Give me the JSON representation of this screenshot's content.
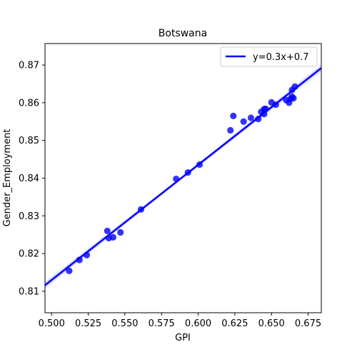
{
  "chart_data": {
    "type": "scatter",
    "title": "Botswana",
    "xlabel": "GPI",
    "ylabel": "Gender_Employment",
    "xlim": [
      0.4955,
      0.684
    ],
    "ylim": [
      0.8043,
      0.8757
    ],
    "xticks": [
      0.5,
      0.525,
      0.55,
      0.575,
      0.6,
      0.625,
      0.65,
      0.675
    ],
    "xtick_labels": [
      "0.500",
      "0.525",
      "0.550",
      "0.575",
      "0.600",
      "0.625",
      "0.650",
      "0.675"
    ],
    "yticks": [
      0.81,
      0.82,
      0.83,
      0.84,
      0.85,
      0.86,
      0.87
    ],
    "ytick_labels": [
      "0.81",
      "0.82",
      "0.83",
      "0.84",
      "0.85",
      "0.86",
      "0.87"
    ],
    "grid": false,
    "legend_position": "top-right",
    "series": [
      {
        "kind": "scatter",
        "color": "#0000ff",
        "points": [
          {
            "x": 0.512,
            "y": 0.8154
          },
          {
            "x": 0.519,
            "y": 0.8183
          },
          {
            "x": 0.524,
            "y": 0.8196
          },
          {
            "x": 0.538,
            "y": 0.826
          },
          {
            "x": 0.539,
            "y": 0.8241
          },
          {
            "x": 0.542,
            "y": 0.8243
          },
          {
            "x": 0.547,
            "y": 0.8256
          },
          {
            "x": 0.561,
            "y": 0.8317
          },
          {
            "x": 0.585,
            "y": 0.8398
          },
          {
            "x": 0.593,
            "y": 0.8415
          },
          {
            "x": 0.601,
            "y": 0.8436
          },
          {
            "x": 0.622,
            "y": 0.8527
          },
          {
            "x": 0.624,
            "y": 0.8565
          },
          {
            "x": 0.631,
            "y": 0.855
          },
          {
            "x": 0.636,
            "y": 0.856
          },
          {
            "x": 0.641,
            "y": 0.8557
          },
          {
            "x": 0.643,
            "y": 0.8576
          },
          {
            "x": 0.645,
            "y": 0.857
          },
          {
            "x": 0.645,
            "y": 0.8583
          },
          {
            "x": 0.646,
            "y": 0.8584
          },
          {
            "x": 0.65,
            "y": 0.8601
          },
          {
            "x": 0.653,
            "y": 0.8595
          },
          {
            "x": 0.66,
            "y": 0.8607
          },
          {
            "x": 0.662,
            "y": 0.86
          },
          {
            "x": 0.663,
            "y": 0.861
          },
          {
            "x": 0.664,
            "y": 0.8616
          },
          {
            "x": 0.665,
            "y": 0.8612
          },
          {
            "x": 0.664,
            "y": 0.8634
          },
          {
            "x": 0.666,
            "y": 0.8643
          }
        ]
      },
      {
        "kind": "line",
        "name": "y=0.3x+0.7",
        "color": "#0000ff",
        "x": [
          0.4955,
          0.684
        ],
        "y": [
          0.8116,
          0.8692
        ]
      }
    ]
  }
}
